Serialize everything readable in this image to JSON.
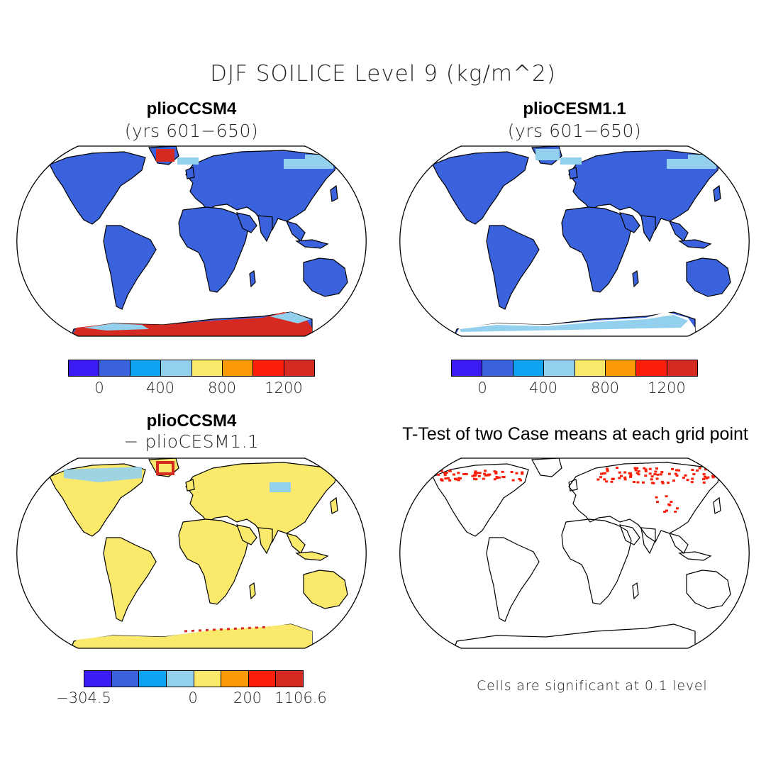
{
  "figure": {
    "title": "DJF SOILICE Level 9 (kg/m^2)"
  },
  "panels": {
    "top_left": {
      "title": "plioCCSM4",
      "subtitle": "(yrs 601−650)"
    },
    "top_right": {
      "title": "plioCESM1.1",
      "subtitle": "(yrs 601−650)"
    },
    "bottom_left": {
      "title": "plioCCSM4",
      "subtitle": "− plioCESM1.1"
    },
    "bottom_right": {
      "title": "T-Test of two Case means at each grid point",
      "note": "Cells are significant at 0.1 level"
    }
  },
  "colorbars": {
    "top_left": {
      "colors": [
        "#3b1cf5",
        "#3a62dc",
        "#0da3f2",
        "#93d0ee",
        "#fbe96b",
        "#fb9a07",
        "#fb1e08",
        "#d42a22"
      ],
      "ticks": [
        "0",
        "400",
        "800",
        "1200"
      ]
    },
    "top_right": {
      "colors": [
        "#3b1cf5",
        "#3a62dc",
        "#0da3f2",
        "#93d0ee",
        "#fbe96b",
        "#fb9a07",
        "#fb1e08",
        "#d42a22"
      ],
      "ticks": [
        "0",
        "400",
        "800",
        "1200"
      ]
    },
    "bottom_left": {
      "colors": [
        "#3b1cf5",
        "#3a62dc",
        "#0da3f2",
        "#93d0ee",
        "#fbe96b",
        "#fb9a07",
        "#fb1e08",
        "#d42a22"
      ],
      "ticks": [
        "−304.5",
        "0",
        "200",
        "1106.6"
      ]
    }
  },
  "map_colors": {
    "land_main": "#3a62dc",
    "land_light": "#93d0ee",
    "high": "#d42a22",
    "diff_land": "#fbe96b",
    "significant": "#fb1e08"
  }
}
